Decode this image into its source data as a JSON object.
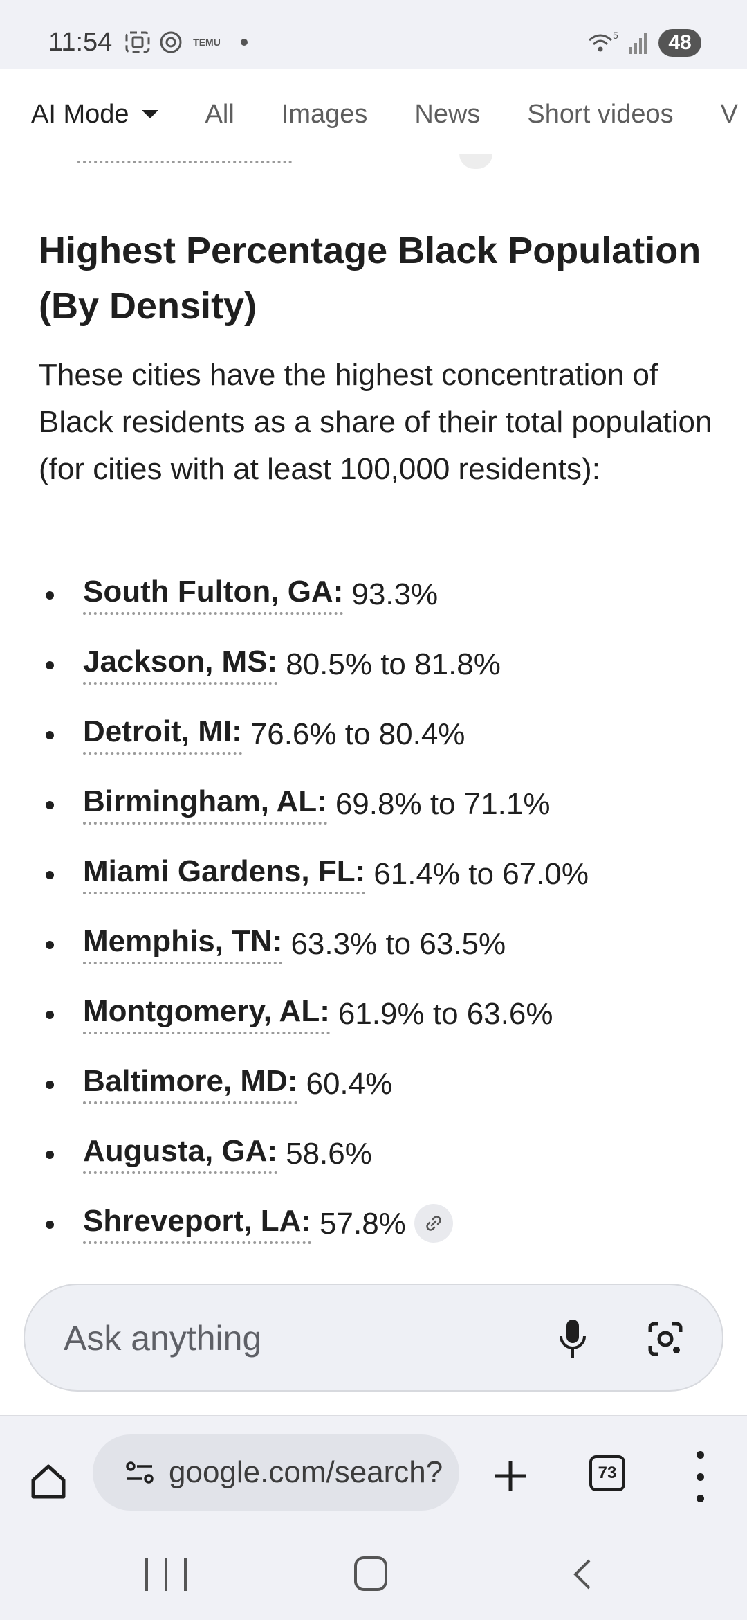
{
  "status_bar": {
    "time": "11:54",
    "left_icons": [
      "screenshot-icon",
      "threads-icon",
      "temu-icon",
      "dot-icon"
    ],
    "temu_label": "TEMU",
    "wifi_label": "5",
    "battery": "48"
  },
  "tabs": [
    {
      "label": "AI Mode",
      "active": true
    },
    {
      "label": "All"
    },
    {
      "label": "Images"
    },
    {
      "label": "News"
    },
    {
      "label": "Short videos"
    },
    {
      "label": "V"
    }
  ],
  "section": {
    "heading": "Highest Percentage Black Population (By Density)",
    "intro": "These cities have the highest concentration of Black residents as a share of their total population (for cities with at least 100,000 residents):",
    "cities": [
      {
        "name": "South Fulton, GA:",
        "value": "93.3%"
      },
      {
        "name": "Jackson, MS:",
        "value": "80.5% to 81.8%"
      },
      {
        "name": "Detroit, MI:",
        "value": "76.6% to 80.4%"
      },
      {
        "name": "Birmingham, AL:",
        "value": "69.8% to 71.1%"
      },
      {
        "name": "Miami Gardens, FL:",
        "value": "61.4% to 67.0%"
      },
      {
        "name": "Memphis, TN:",
        "value": "63.3% to 63.5%"
      },
      {
        "name": "Montgomery, AL:",
        "value": "61.9% to 63.6%"
      },
      {
        "name": "Baltimore, MD:",
        "value": "60.4%"
      },
      {
        "name": "Augusta, GA:",
        "value": "58.6%"
      },
      {
        "name": "Shreveport, LA:",
        "value": "57.8%"
      }
    ]
  },
  "ask_bar": {
    "placeholder": "Ask anything",
    "mic_icon": "microphone-icon",
    "lens_icon": "camera-lens-icon"
  },
  "browser_bar": {
    "url": "google.com/search?",
    "tab_count": "73",
    "icons": [
      "home-icon",
      "site-settings-icon",
      "plus-icon",
      "tabs-icon",
      "more-vert-icon"
    ]
  },
  "colors": {
    "status_bg": "#f0f1f6",
    "text": "#1f1f1f",
    "muted": "#5e5e5e",
    "ask_bg": "#eef0f5"
  }
}
